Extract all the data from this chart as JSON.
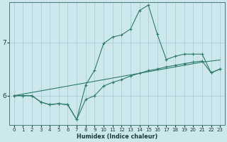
{
  "xlabel": "Humidex (Indice chaleur)",
  "background_color": "#cce8ec",
  "line_color": "#2d7a6a",
  "grid_color": "#aacdd4",
  "x_ticks": [
    0,
    1,
    2,
    3,
    4,
    5,
    6,
    7,
    8,
    9,
    10,
    11,
    12,
    13,
    14,
    15,
    16,
    17,
    18,
    19,
    20,
    21,
    22,
    23
  ],
  "y_ticks": [
    6,
    7
  ],
  "xlim": [
    -0.5,
    23.5
  ],
  "ylim": [
    5.45,
    7.75
  ],
  "line1_x": [
    0,
    1,
    2,
    3,
    4,
    5,
    6,
    7,
    8,
    9,
    10,
    11,
    12,
    13,
    14,
    15,
    16,
    17,
    18,
    19,
    20,
    21,
    22,
    23
  ],
  "line1_y": [
    6.0,
    6.0,
    6.0,
    5.88,
    5.83,
    5.85,
    5.83,
    5.55,
    5.93,
    6.0,
    6.18,
    6.25,
    6.3,
    6.37,
    6.42,
    6.47,
    6.5,
    6.54,
    6.57,
    6.6,
    6.63,
    6.65,
    6.43,
    6.5
  ],
  "line2_x": [
    0,
    1,
    2,
    3,
    4,
    5,
    6,
    7,
    8,
    9,
    10,
    11,
    12,
    13,
    14,
    15,
    16,
    17,
    18,
    19,
    20,
    21,
    22,
    23
  ],
  "line2_y": [
    6.0,
    6.0,
    6.0,
    5.88,
    5.83,
    5.85,
    5.83,
    5.55,
    6.2,
    6.48,
    6.98,
    7.1,
    7.14,
    7.25,
    7.6,
    7.7,
    7.15,
    6.68,
    6.74,
    6.78,
    6.78,
    6.78,
    6.43,
    6.5
  ],
  "line3_x": [
    0,
    1,
    2,
    3,
    4,
    5,
    6,
    7,
    8,
    9,
    10,
    11,
    12,
    13,
    14,
    15,
    16,
    17,
    18,
    19,
    20,
    21,
    22,
    23
  ],
  "line3_y": [
    6.0,
    6.03,
    6.06,
    6.09,
    6.12,
    6.15,
    6.18,
    6.21,
    6.24,
    6.27,
    6.3,
    6.33,
    6.36,
    6.39,
    6.42,
    6.45,
    6.48,
    6.51,
    6.54,
    6.57,
    6.6,
    6.63,
    6.65,
    6.67
  ]
}
